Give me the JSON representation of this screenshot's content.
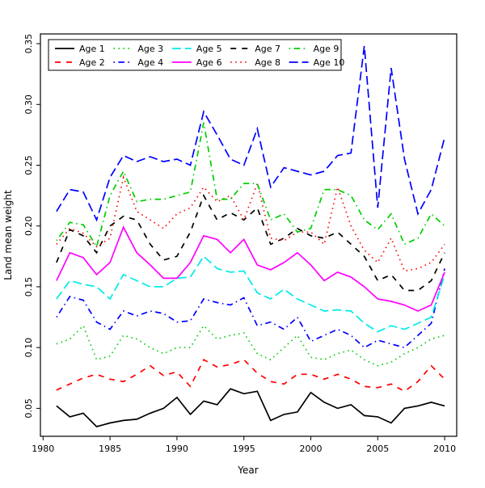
{
  "chart_data": {
    "type": "line",
    "title": "",
    "xlabel": "Year",
    "ylabel": "Land mean weight",
    "grid": false,
    "legend_position": "top-left-inside",
    "legend_columns": 5,
    "xlim": [
      1979.8,
      2010.9
    ],
    "ylim": [
      0.027,
      0.358
    ],
    "x_ticks": [
      1980,
      1985,
      1990,
      1995,
      2000,
      2005,
      2010
    ],
    "x_tick_labels": [
      "1980",
      "1985",
      "1990",
      "1995",
      "2000",
      "2005",
      "2010"
    ],
    "y_ticks": [
      0.05,
      0.1,
      0.15,
      0.2,
      0.25,
      0.3,
      0.35
    ],
    "y_tick_labels": [
      "0.05",
      "0.10",
      "0.15",
      "0.20",
      "0.25",
      "0.30",
      "0.35"
    ],
    "x": [
      1981,
      1982,
      1983,
      1984,
      1985,
      1986,
      1987,
      1988,
      1989,
      1990,
      1991,
      1992,
      1993,
      1994,
      1995,
      1996,
      1997,
      1998,
      1999,
      2000,
      2001,
      2002,
      2003,
      2004,
      2005,
      2006,
      2007,
      2008,
      2009,
      2010
    ],
    "series": [
      {
        "name": "Age 1",
        "color": "#000000",
        "dash": "solid",
        "values": [
          0.052,
          0.043,
          0.046,
          0.035,
          0.038,
          0.04,
          0.041,
          0.046,
          0.05,
          0.059,
          0.045,
          0.056,
          0.053,
          0.066,
          0.062,
          0.064,
          0.04,
          0.045,
          0.047,
          0.063,
          0.055,
          0.05,
          0.053,
          0.044,
          0.043,
          0.038,
          0.05,
          0.052,
          0.055,
          0.052
        ]
      },
      {
        "name": "Age 2",
        "color": "#ff0000",
        "dash": "dashed",
        "values": [
          0.065,
          0.07,
          0.075,
          0.078,
          0.074,
          0.072,
          0.078,
          0.085,
          0.077,
          0.08,
          0.068,
          0.09,
          0.084,
          0.086,
          0.09,
          0.079,
          0.072,
          0.07,
          0.078,
          0.078,
          0.074,
          0.078,
          0.074,
          0.068,
          0.067,
          0.07,
          0.064,
          0.072,
          0.085,
          0.074
        ]
      },
      {
        "name": "Age 3",
        "color": "#00cd00",
        "dash": "dotted",
        "values": [
          0.103,
          0.107,
          0.118,
          0.09,
          0.093,
          0.11,
          0.107,
          0.1,
          0.095,
          0.1,
          0.1,
          0.118,
          0.107,
          0.11,
          0.112,
          0.095,
          0.09,
          0.1,
          0.11,
          0.092,
          0.09,
          0.095,
          0.098,
          0.09,
          0.085,
          0.088,
          0.095,
          0.1,
          0.107,
          0.11
        ]
      },
      {
        "name": "Age 4",
        "color": "#0000ff",
        "dash": "dotdash",
        "values": [
          0.125,
          0.142,
          0.139,
          0.121,
          0.115,
          0.13,
          0.126,
          0.13,
          0.128,
          0.121,
          0.122,
          0.14,
          0.137,
          0.135,
          0.141,
          0.118,
          0.121,
          0.115,
          0.125,
          0.105,
          0.11,
          0.115,
          0.11,
          0.1,
          0.106,
          0.103,
          0.1,
          0.11,
          0.12,
          0.165
        ]
      },
      {
        "name": "Age 5",
        "color": "#00eaea",
        "dash": "longdash",
        "values": [
          0.14,
          0.155,
          0.152,
          0.15,
          0.14,
          0.16,
          0.155,
          0.15,
          0.15,
          0.157,
          0.158,
          0.175,
          0.165,
          0.162,
          0.163,
          0.145,
          0.14,
          0.148,
          0.14,
          0.135,
          0.13,
          0.131,
          0.13,
          0.12,
          0.113,
          0.118,
          0.115,
          0.12,
          0.125,
          0.16
        ]
      },
      {
        "name": "Age 6",
        "color": "#ff00ff",
        "dash": "solid",
        "values": [
          0.155,
          0.178,
          0.174,
          0.16,
          0.17,
          0.199,
          0.178,
          0.168,
          0.157,
          0.157,
          0.17,
          0.192,
          0.189,
          0.178,
          0.189,
          0.168,
          0.164,
          0.17,
          0.178,
          0.168,
          0.155,
          0.162,
          0.158,
          0.15,
          0.14,
          0.138,
          0.135,
          0.13,
          0.135,
          0.162
        ]
      },
      {
        "name": "Age 7",
        "color": "#000000",
        "dash": "dashed",
        "values": [
          0.17,
          0.197,
          0.192,
          0.178,
          0.2,
          0.208,
          0.205,
          0.185,
          0.172,
          0.175,
          0.195,
          0.225,
          0.205,
          0.211,
          0.205,
          0.215,
          0.185,
          0.19,
          0.198,
          0.192,
          0.19,
          0.195,
          0.185,
          0.175,
          0.155,
          0.16,
          0.147,
          0.147,
          0.155,
          0.178
        ]
      },
      {
        "name": "Age 8",
        "color": "#ff0000",
        "dash": "dotted",
        "values": [
          0.185,
          0.198,
          0.194,
          0.183,
          0.19,
          0.24,
          0.212,
          0.205,
          0.198,
          0.21,
          0.215,
          0.232,
          0.22,
          0.225,
          0.205,
          0.235,
          0.19,
          0.188,
          0.195,
          0.195,
          0.185,
          0.232,
          0.2,
          0.18,
          0.17,
          0.19,
          0.163,
          0.165,
          0.17,
          0.185
        ]
      },
      {
        "name": "Age 9",
        "color": "#00cd00",
        "dash": "dotdash",
        "values": [
          0.188,
          0.203,
          0.201,
          0.183,
          0.225,
          0.245,
          0.22,
          0.222,
          0.222,
          0.225,
          0.228,
          0.285,
          0.222,
          0.222,
          0.235,
          0.235,
          0.205,
          0.21,
          0.195,
          0.198,
          0.23,
          0.23,
          0.225,
          0.205,
          0.197,
          0.21,
          0.185,
          0.19,
          0.21,
          0.2
        ]
      },
      {
        "name": "Age 10",
        "color": "#0000ff",
        "dash": "longdash",
        "values": [
          0.212,
          0.23,
          0.228,
          0.205,
          0.24,
          0.258,
          0.253,
          0.257,
          0.253,
          0.255,
          0.25,
          0.294,
          0.275,
          0.255,
          0.25,
          0.28,
          0.232,
          0.248,
          0.245,
          0.242,
          0.245,
          0.258,
          0.26,
          0.348,
          0.215,
          0.33,
          0.255,
          0.21,
          0.23,
          0.273
        ]
      }
    ]
  }
}
